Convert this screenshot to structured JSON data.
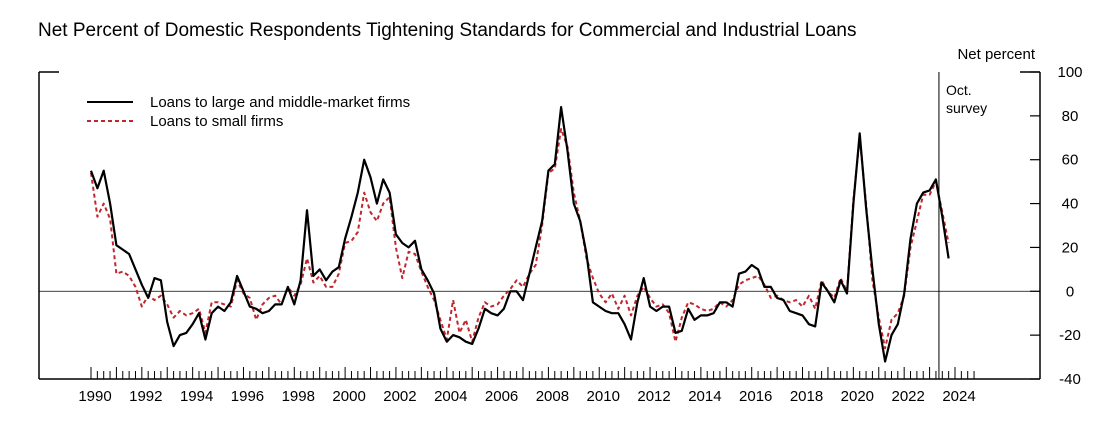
{
  "chart_data": {
    "type": "line",
    "title": "Net Percent of Domestic Respondents Tightening Standards for Commercial and Industrial Loans",
    "ylabel": "Net percent",
    "xlabel": "",
    "ylim": [
      -40,
      100
    ],
    "yticks": [
      100,
      80,
      60,
      40,
      20,
      0,
      -20,
      -40
    ],
    "xlim": [
      1989.5,
      2025
    ],
    "xticks": [
      1990,
      1992,
      1994,
      1996,
      1998,
      2000,
      2002,
      2004,
      2006,
      2008,
      2010,
      2012,
      2014,
      2016,
      2018,
      2020,
      2022,
      2024
    ],
    "annotation": {
      "x": 2023.25,
      "text_line1": "Oct.",
      "text_line2": "survey"
    },
    "legend_position": "top-left",
    "grid": false,
    "series": [
      {
        "name": "Loans to large and middle-market firms",
        "color": "#000000",
        "style": "solid",
        "points": [
          [
            1990.0,
            55
          ],
          [
            1990.25,
            47
          ],
          [
            1990.5,
            55
          ],
          [
            1990.75,
            40
          ],
          [
            1991.0,
            21
          ],
          [
            1991.25,
            19
          ],
          [
            1991.5,
            17
          ],
          [
            1991.75,
            10
          ],
          [
            1992.0,
            3
          ],
          [
            1992.25,
            -3
          ],
          [
            1992.5,
            6
          ],
          [
            1992.75,
            5
          ],
          [
            1993.0,
            -14
          ],
          [
            1993.25,
            -25
          ],
          [
            1993.5,
            -20
          ],
          [
            1993.75,
            -19
          ],
          [
            1994.0,
            -15
          ],
          [
            1994.25,
            -10
          ],
          [
            1994.5,
            -22
          ],
          [
            1994.75,
            -10
          ],
          [
            1995.0,
            -7
          ],
          [
            1995.25,
            -9
          ],
          [
            1995.5,
            -5
          ],
          [
            1995.75,
            7
          ],
          [
            1996.0,
            0
          ],
          [
            1996.25,
            -7
          ],
          [
            1996.5,
            -8
          ],
          [
            1996.75,
            -10
          ],
          [
            1997.0,
            -9
          ],
          [
            1997.25,
            -6
          ],
          [
            1997.5,
            -6
          ],
          [
            1997.75,
            2
          ],
          [
            1998.0,
            -6
          ],
          [
            1998.25,
            5
          ],
          [
            1998.5,
            37
          ],
          [
            1998.75,
            7
          ],
          [
            1999.0,
            10
          ],
          [
            1999.25,
            5
          ],
          [
            1999.5,
            9
          ],
          [
            1999.75,
            11
          ],
          [
            2000.0,
            24
          ],
          [
            2000.25,
            34
          ],
          [
            2000.5,
            45
          ],
          [
            2000.75,
            60
          ],
          [
            2001.0,
            52
          ],
          [
            2001.25,
            40
          ],
          [
            2001.5,
            51
          ],
          [
            2001.75,
            45
          ],
          [
            2002.0,
            26
          ],
          [
            2002.25,
            22
          ],
          [
            2002.5,
            20
          ],
          [
            2002.75,
            23
          ],
          [
            2003.0,
            10
          ],
          [
            2003.25,
            5
          ],
          [
            2003.5,
            -1
          ],
          [
            2003.75,
            -17
          ],
          [
            2004.0,
            -23
          ],
          [
            2004.25,
            -20
          ],
          [
            2004.5,
            -21
          ],
          [
            2004.75,
            -23
          ],
          [
            2005.0,
            -24
          ],
          [
            2005.25,
            -17
          ],
          [
            2005.5,
            -8
          ],
          [
            2005.75,
            -10
          ],
          [
            2006.0,
            -11
          ],
          [
            2006.25,
            -8
          ],
          [
            2006.5,
            0
          ],
          [
            2006.75,
            0
          ],
          [
            2007.0,
            -4
          ],
          [
            2007.25,
            8
          ],
          [
            2007.5,
            20
          ],
          [
            2007.75,
            32
          ],
          [
            2008.0,
            55
          ],
          [
            2008.25,
            58
          ],
          [
            2008.5,
            84
          ],
          [
            2008.75,
            64
          ],
          [
            2009.0,
            40
          ],
          [
            2009.25,
            32
          ],
          [
            2009.5,
            17
          ],
          [
            2009.75,
            -5
          ],
          [
            2010.0,
            -7
          ],
          [
            2010.25,
            -9
          ],
          [
            2010.5,
            -10
          ],
          [
            2010.75,
            -10
          ],
          [
            2011.0,
            -15
          ],
          [
            2011.25,
            -22
          ],
          [
            2011.5,
            -5
          ],
          [
            2011.75,
            6
          ],
          [
            2012.0,
            -7
          ],
          [
            2012.25,
            -9
          ],
          [
            2012.5,
            -7
          ],
          [
            2012.75,
            -7
          ],
          [
            2013.0,
            -19
          ],
          [
            2013.25,
            -18
          ],
          [
            2013.5,
            -8
          ],
          [
            2013.75,
            -13
          ],
          [
            2014.0,
            -11
          ],
          [
            2014.25,
            -11
          ],
          [
            2014.5,
            -10
          ],
          [
            2014.75,
            -5
          ],
          [
            2015.0,
            -5
          ],
          [
            2015.25,
            -7
          ],
          [
            2015.5,
            8
          ],
          [
            2015.75,
            9
          ],
          [
            2016.0,
            12
          ],
          [
            2016.25,
            10
          ],
          [
            2016.5,
            2
          ],
          [
            2016.75,
            2
          ],
          [
            2017.0,
            -3
          ],
          [
            2017.25,
            -4
          ],
          [
            2017.5,
            -9
          ],
          [
            2017.75,
            -10
          ],
          [
            2018.0,
            -11
          ],
          [
            2018.25,
            -15
          ],
          [
            2018.5,
            -16
          ],
          [
            2018.75,
            4
          ],
          [
            2019.0,
            0
          ],
          [
            2019.25,
            -5
          ],
          [
            2019.5,
            5
          ],
          [
            2019.75,
            -1
          ],
          [
            2020.0,
            40
          ],
          [
            2020.25,
            72
          ],
          [
            2020.5,
            38
          ],
          [
            2020.75,
            10
          ],
          [
            2021.0,
            -15
          ],
          [
            2021.25,
            -32
          ],
          [
            2021.5,
            -20
          ],
          [
            2021.75,
            -15
          ],
          [
            2022.0,
            -1
          ],
          [
            2022.25,
            24
          ],
          [
            2022.5,
            40
          ],
          [
            2022.75,
            45
          ],
          [
            2023.0,
            46
          ],
          [
            2023.25,
            51
          ],
          [
            2023.5,
            34
          ],
          [
            2023.75,
            15
          ]
        ]
      },
      {
        "name": "Loans to small firms",
        "color": "#c0272d",
        "style": "dashed",
        "points": [
          [
            1990.0,
            54
          ],
          [
            1990.25,
            34
          ],
          [
            1990.5,
            40
          ],
          [
            1990.75,
            33
          ],
          [
            1991.0,
            8
          ],
          [
            1991.25,
            9
          ],
          [
            1991.5,
            7
          ],
          [
            1991.75,
            2
          ],
          [
            1992.0,
            -7
          ],
          [
            1992.25,
            -2
          ],
          [
            1992.5,
            -4
          ],
          [
            1992.75,
            -2
          ],
          [
            1993.0,
            -6
          ],
          [
            1993.25,
            -12
          ],
          [
            1993.5,
            -9
          ],
          [
            1993.75,
            -11
          ],
          [
            1994.0,
            -10
          ],
          [
            1994.25,
            -8
          ],
          [
            1994.5,
            -19
          ],
          [
            1994.75,
            -5
          ],
          [
            1995.0,
            -5
          ],
          [
            1995.25,
            -6
          ],
          [
            1995.5,
            -7
          ],
          [
            1995.75,
            5
          ],
          [
            1996.0,
            -1
          ],
          [
            1996.25,
            -3
          ],
          [
            1996.5,
            -13
          ],
          [
            1996.75,
            -6
          ],
          [
            1997.0,
            -3
          ],
          [
            1997.25,
            -2
          ],
          [
            1997.5,
            -6
          ],
          [
            1997.75,
            2
          ],
          [
            1998.0,
            -2
          ],
          [
            1998.25,
            3
          ],
          [
            1998.5,
            15
          ],
          [
            1998.75,
            4
          ],
          [
            1999.0,
            7
          ],
          [
            1999.25,
            2
          ],
          [
            1999.5,
            2
          ],
          [
            1999.75,
            8
          ],
          [
            2000.0,
            22
          ],
          [
            2000.25,
            23
          ],
          [
            2000.5,
            27
          ],
          [
            2000.75,
            45
          ],
          [
            2001.0,
            36
          ],
          [
            2001.25,
            32
          ],
          [
            2001.5,
            40
          ],
          [
            2001.75,
            43
          ],
          [
            2002.0,
            20
          ],
          [
            2002.25,
            6
          ],
          [
            2002.5,
            18
          ],
          [
            2002.75,
            17
          ],
          [
            2003.0,
            9
          ],
          [
            2003.25,
            2
          ],
          [
            2003.5,
            -4
          ],
          [
            2003.75,
            -13
          ],
          [
            2004.0,
            -22
          ],
          [
            2004.25,
            -4
          ],
          [
            2004.5,
            -19
          ],
          [
            2004.75,
            -13
          ],
          [
            2005.0,
            -23
          ],
          [
            2005.25,
            -12
          ],
          [
            2005.5,
            -5
          ],
          [
            2005.75,
            -7
          ],
          [
            2006.0,
            -6
          ],
          [
            2006.25,
            -2
          ],
          [
            2006.5,
            1
          ],
          [
            2006.75,
            5
          ],
          [
            2007.0,
            2
          ],
          [
            2007.25,
            8
          ],
          [
            2007.5,
            12
          ],
          [
            2007.75,
            30
          ],
          [
            2008.0,
            54
          ],
          [
            2008.25,
            56
          ],
          [
            2008.5,
            74
          ],
          [
            2008.75,
            66
          ],
          [
            2009.0,
            45
          ],
          [
            2009.25,
            32
          ],
          [
            2009.5,
            15
          ],
          [
            2009.75,
            6
          ],
          [
            2010.0,
            -1
          ],
          [
            2010.25,
            -5
          ],
          [
            2010.5,
            -1
          ],
          [
            2010.75,
            -8
          ],
          [
            2011.0,
            -2
          ],
          [
            2011.25,
            -11
          ],
          [
            2011.5,
            -2
          ],
          [
            2011.75,
            2
          ],
          [
            2012.0,
            -3
          ],
          [
            2012.25,
            -7
          ],
          [
            2012.5,
            -6
          ],
          [
            2012.75,
            -10
          ],
          [
            2013.0,
            -23
          ],
          [
            2013.25,
            -12
          ],
          [
            2013.5,
            -5
          ],
          [
            2013.75,
            -6
          ],
          [
            2014.0,
            -8
          ],
          [
            2014.25,
            -9
          ],
          [
            2014.5,
            -8
          ],
          [
            2014.75,
            -5
          ],
          [
            2015.0,
            -7
          ],
          [
            2015.25,
            -4
          ],
          [
            2015.5,
            3
          ],
          [
            2015.75,
            5
          ],
          [
            2016.0,
            6
          ],
          [
            2016.25,
            7
          ],
          [
            2016.5,
            3
          ],
          [
            2016.75,
            -3
          ],
          [
            2017.0,
            -2
          ],
          [
            2017.25,
            -4
          ],
          [
            2017.5,
            -5
          ],
          [
            2017.75,
            -4
          ],
          [
            2018.0,
            -7
          ],
          [
            2018.25,
            -2
          ],
          [
            2018.5,
            -8
          ],
          [
            2018.75,
            5
          ],
          [
            2019.0,
            0
          ],
          [
            2019.25,
            -3
          ],
          [
            2019.5,
            6
          ],
          [
            2019.75,
            0
          ],
          [
            2020.0,
            42
          ],
          [
            2020.25,
            70
          ],
          [
            2020.5,
            40
          ],
          [
            2020.75,
            5
          ],
          [
            2021.0,
            -12
          ],
          [
            2021.25,
            -26
          ],
          [
            2021.5,
            -13
          ],
          [
            2021.75,
            -10
          ],
          [
            2022.0,
            -2
          ],
          [
            2022.25,
            20
          ],
          [
            2022.5,
            32
          ],
          [
            2022.75,
            44
          ],
          [
            2023.0,
            44
          ],
          [
            2023.25,
            50
          ],
          [
            2023.5,
            36
          ],
          [
            2023.75,
            22
          ]
        ]
      }
    ]
  }
}
